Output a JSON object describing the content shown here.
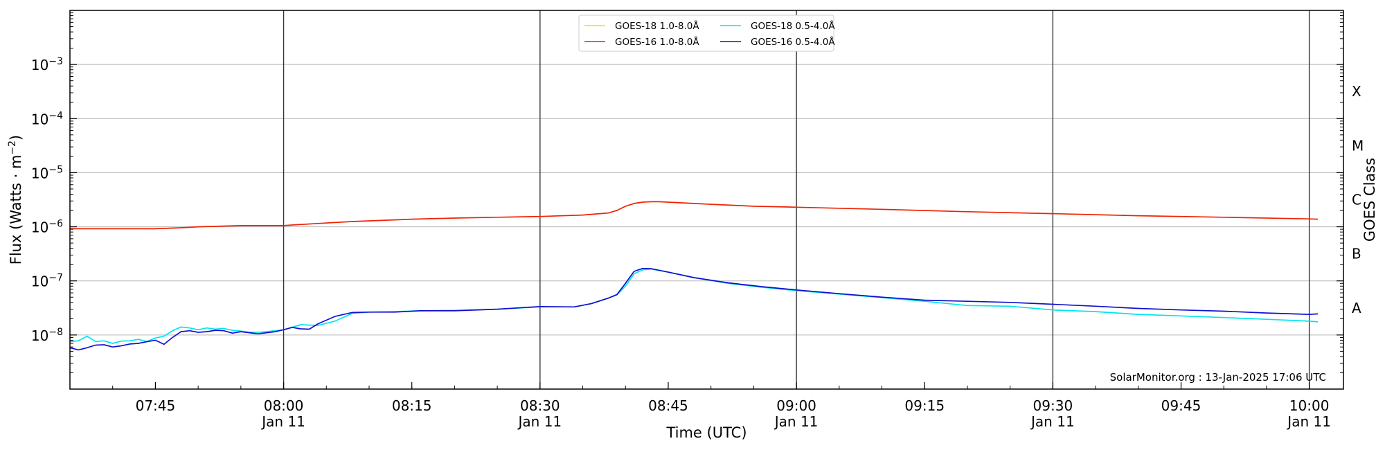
{
  "chart_data": {
    "type": "line",
    "title": "",
    "xlabel": "Time (UTC)",
    "ylabel": "Flux (Watts · m",
    "ylabel_exponent": "−2",
    "ylabel_close": ")",
    "y2label": "GOES Class",
    "y_scale": "log",
    "ylim": [
      1e-09,
      0.01
    ],
    "xlim": [
      "2025-01-11 07:35",
      "2025-01-11 10:04"
    ],
    "grid": "horizontal at decades, vertical at 30-minute marks",
    "legend_position": "top-center",
    "x_ticks": [
      {
        "time": "2025-01-11 07:45",
        "label": "07:45",
        "sublabel": ""
      },
      {
        "time": "2025-01-11 08:00",
        "label": "08:00",
        "sublabel": "Jan 11"
      },
      {
        "time": "2025-01-11 08:15",
        "label": "08:15",
        "sublabel": ""
      },
      {
        "time": "2025-01-11 08:30",
        "label": "08:30",
        "sublabel": "Jan 11"
      },
      {
        "time": "2025-01-11 08:45",
        "label": "08:45",
        "sublabel": ""
      },
      {
        "time": "2025-01-11 09:00",
        "label": "09:00",
        "sublabel": "Jan 11"
      },
      {
        "time": "2025-01-11 09:15",
        "label": "09:15",
        "sublabel": ""
      },
      {
        "time": "2025-01-11 09:30",
        "label": "09:30",
        "sublabel": "Jan 11"
      },
      {
        "time": "2025-01-11 09:45",
        "label": "09:45",
        "sublabel": ""
      },
      {
        "time": "2025-01-11 10:00",
        "label": "10:00",
        "sublabel": "Jan 11"
      }
    ],
    "y_ticks": [
      {
        "value": 1e-08,
        "base": "10",
        "exp": "−8"
      },
      {
        "value": 1e-07,
        "base": "10",
        "exp": "−7"
      },
      {
        "value": 1e-06,
        "base": "10",
        "exp": "−6"
      },
      {
        "value": 1e-05,
        "base": "10",
        "exp": "−5"
      },
      {
        "value": 0.0001,
        "base": "10",
        "exp": "−4"
      },
      {
        "value": 0.001,
        "base": "10",
        "exp": "−3"
      }
    ],
    "classes": [
      {
        "label": "A",
        "value": 3.162e-08
      },
      {
        "label": "B",
        "value": 3.162e-07
      },
      {
        "label": "C",
        "value": 3.162e-06
      },
      {
        "label": "M",
        "value": 3.162e-05
      },
      {
        "label": "X",
        "value": 0.0003162
      }
    ],
    "series": [
      {
        "name": "GOES-18 1.0-8.0Å",
        "color": "#ffd700",
        "x": [],
        "y": []
      },
      {
        "name": "GOES-18 0.5-4.0Å",
        "color": "#00e5ee",
        "x": [
          "2025-01-11 07:35",
          "2025-01-11 07:36",
          "2025-01-11 07:37",
          "2025-01-11 07:38",
          "2025-01-11 07:39",
          "2025-01-11 07:40",
          "2025-01-11 07:41",
          "2025-01-11 07:42",
          "2025-01-11 07:43",
          "2025-01-11 07:44",
          "2025-01-11 07:45",
          "2025-01-11 07:46",
          "2025-01-11 07:47",
          "2025-01-11 07:48",
          "2025-01-11 07:49",
          "2025-01-11 07:50",
          "2025-01-11 07:51",
          "2025-01-11 07:52",
          "2025-01-11 07:53",
          "2025-01-11 07:54",
          "2025-01-11 07:55",
          "2025-01-11 07:56",
          "2025-01-11 07:57",
          "2025-01-11 07:58",
          "2025-01-11 07:59",
          "2025-01-11 08:00",
          "2025-01-11 08:02",
          "2025-01-11 08:04",
          "2025-01-11 08:06",
          "2025-01-11 08:08",
          "2025-01-11 08:10",
          "2025-01-11 08:13",
          "2025-01-11 08:16",
          "2025-01-11 08:20",
          "2025-01-11 08:25",
          "2025-01-11 08:30",
          "2025-01-11 08:34",
          "2025-01-11 08:36",
          "2025-01-11 08:38",
          "2025-01-11 08:39",
          "2025-01-11 08:40",
          "2025-01-11 08:41",
          "2025-01-11 08:42",
          "2025-01-11 08:43",
          "2025-01-11 08:45",
          "2025-01-11 08:48",
          "2025-01-11 08:52",
          "2025-01-11 08:56",
          "2025-01-11 09:00",
          "2025-01-11 09:05",
          "2025-01-11 09:10",
          "2025-01-11 09:15",
          "2025-01-11 09:20",
          "2025-01-11 09:25",
          "2025-01-11 09:30",
          "2025-01-11 09:35",
          "2025-01-11 09:40",
          "2025-01-11 09:45",
          "2025-01-11 09:50",
          "2025-01-11 09:55",
          "2025-01-11 10:00",
          "2025-01-11 10:01"
        ],
        "y": [
          7.5e-09,
          7.8e-09,
          9.5e-09,
          7.6e-09,
          7.8e-09,
          7e-09,
          7.7e-09,
          7.8e-09,
          8.3e-09,
          7.6e-09,
          8.8e-09,
          9.5e-09,
          1.2e-08,
          1.4e-08,
          1.35e-08,
          1.25e-08,
          1.35e-08,
          1.28e-08,
          1.32e-08,
          1.22e-08,
          1.18e-08,
          1.12e-08,
          1.12e-08,
          1.15e-08,
          1.2e-08,
          1.25e-08,
          1.55e-08,
          1.5e-08,
          1.8e-08,
          2.5e-08,
          2.65e-08,
          2.7e-08,
          2.8e-08,
          2.85e-08,
          3e-08,
          3.3e-08,
          3.3e-08,
          3.8e-08,
          4.8e-08,
          5.5e-08,
          8e-08,
          1.35e-07,
          1.6e-07,
          1.65e-07,
          1.45e-07,
          1.15e-07,
          9e-08,
          7.6e-08,
          6.6e-08,
          5.7e-08,
          4.9e-08,
          4.2e-08,
          3.5e-08,
          3.4e-08,
          2.9e-08,
          2.7e-08,
          2.4e-08,
          2.25e-08,
          2.1e-08,
          1.95e-08,
          1.8e-08,
          1.75e-08
        ]
      },
      {
        "name": "GOES-16 1.0-8.0Å",
        "color": "#ee2200",
        "x": [
          "2025-01-11 07:35",
          "2025-01-11 07:40",
          "2025-01-11 07:45",
          "2025-01-11 07:48",
          "2025-01-11 07:50",
          "2025-01-11 07:55",
          "2025-01-11 08:00",
          "2025-01-11 08:01",
          "2025-01-11 08:04",
          "2025-01-11 08:08",
          "2025-01-11 08:15",
          "2025-01-11 08:20",
          "2025-01-11 08:25",
          "2025-01-11 08:30",
          "2025-01-11 08:35",
          "2025-01-11 08:38",
          "2025-01-11 08:39",
          "2025-01-11 08:40",
          "2025-01-11 08:41",
          "2025-01-11 08:42",
          "2025-01-11 08:43",
          "2025-01-11 08:44",
          "2025-01-11 08:46",
          "2025-01-11 08:50",
          "2025-01-11 08:55",
          "2025-01-11 09:00",
          "2025-01-11 09:10",
          "2025-01-11 09:20",
          "2025-01-11 09:30",
          "2025-01-11 09:40",
          "2025-01-11 09:50",
          "2025-01-11 10:00",
          "2025-01-11 10:01"
        ],
        "y": [
          9.2e-07,
          9.2e-07,
          9.2e-07,
          9.6e-07,
          1e-06,
          1.05e-06,
          1.05e-06,
          1.08e-06,
          1.15e-06,
          1.25e-06,
          1.38e-06,
          1.45e-06,
          1.5e-06,
          1.55e-06,
          1.65e-06,
          1.8e-06,
          2e-06,
          2.4e-06,
          2.7e-06,
          2.85e-06,
          2.9e-06,
          2.9e-06,
          2.8e-06,
          2.6e-06,
          2.4e-06,
          2.3e-06,
          2.1e-06,
          1.9e-06,
          1.75e-06,
          1.6e-06,
          1.5e-06,
          1.4e-06,
          1.38e-06
        ]
      },
      {
        "name": "GOES-16 0.5-4.0Å",
        "color": "#1010d0",
        "x": [
          "2025-01-11 07:35",
          "2025-01-11 07:36",
          "2025-01-11 07:37",
          "2025-01-11 07:38",
          "2025-01-11 07:39",
          "2025-01-11 07:40",
          "2025-01-11 07:41",
          "2025-01-11 07:42",
          "2025-01-11 07:43",
          "2025-01-11 07:44",
          "2025-01-11 07:45",
          "2025-01-11 07:46",
          "2025-01-11 07:47",
          "2025-01-11 07:48",
          "2025-01-11 07:49",
          "2025-01-11 07:50",
          "2025-01-11 07:51",
          "2025-01-11 07:52",
          "2025-01-11 07:53",
          "2025-01-11 07:54",
          "2025-01-11 07:55",
          "2025-01-11 07:56",
          "2025-01-11 07:57",
          "2025-01-11 07:58",
          "2025-01-11 07:59",
          "2025-01-11 08:00",
          "2025-01-11 08:01",
          "2025-01-11 08:02",
          "2025-01-11 08:03",
          "2025-01-11 08:04",
          "2025-01-11 08:06",
          "2025-01-11 08:08",
          "2025-01-11 08:10",
          "2025-01-11 08:13",
          "2025-01-11 08:16",
          "2025-01-11 08:20",
          "2025-01-11 08:25",
          "2025-01-11 08:30",
          "2025-01-11 08:34",
          "2025-01-11 08:36",
          "2025-01-11 08:38",
          "2025-01-11 08:39",
          "2025-01-11 08:40",
          "2025-01-11 08:41",
          "2025-01-11 08:42",
          "2025-01-11 08:43",
          "2025-01-11 08:45",
          "2025-01-11 08:48",
          "2025-01-11 08:52",
          "2025-01-11 08:56",
          "2025-01-11 09:00",
          "2025-01-11 09:05",
          "2025-01-11 09:10",
          "2025-01-11 09:15",
          "2025-01-11 09:20",
          "2025-01-11 09:25",
          "2025-01-11 09:30",
          "2025-01-11 09:35",
          "2025-01-11 09:40",
          "2025-01-11 09:45",
          "2025-01-11 09:50",
          "2025-01-11 09:55",
          "2025-01-11 10:00",
          "2025-01-11 10:01"
        ],
        "y": [
          5.8e-09,
          5.3e-09,
          5.8e-09,
          6.5e-09,
          6.6e-09,
          6e-09,
          6.3e-09,
          6.8e-09,
          7e-09,
          7.5e-09,
          8e-09,
          6.7e-09,
          9e-09,
          1.15e-08,
          1.2e-08,
          1.12e-08,
          1.15e-08,
          1.22e-08,
          1.2e-08,
          1.08e-08,
          1.15e-08,
          1.1e-08,
          1.05e-08,
          1.1e-08,
          1.15e-08,
          1.25e-08,
          1.38e-08,
          1.3e-08,
          1.28e-08,
          1.6e-08,
          2.2e-08,
          2.6e-08,
          2.65e-08,
          2.65e-08,
          2.8e-08,
          2.8e-08,
          3e-08,
          3.35e-08,
          3.3e-08,
          3.8e-08,
          4.8e-08,
          5.6e-08,
          9e-08,
          1.5e-07,
          1.7e-07,
          1.68e-07,
          1.45e-07,
          1.15e-07,
          9.2e-08,
          7.8e-08,
          6.8e-08,
          5.8e-08,
          5e-08,
          4.4e-08,
          4.2e-08,
          4e-08,
          3.7e-08,
          3.4e-08,
          3.1e-08,
          2.9e-08,
          2.75e-08,
          2.55e-08,
          2.4e-08,
          2.45e-08
        ]
      }
    ],
    "annotation": "SolarMonitor.org : 13-Jan-2025 17:06 UTC"
  }
}
